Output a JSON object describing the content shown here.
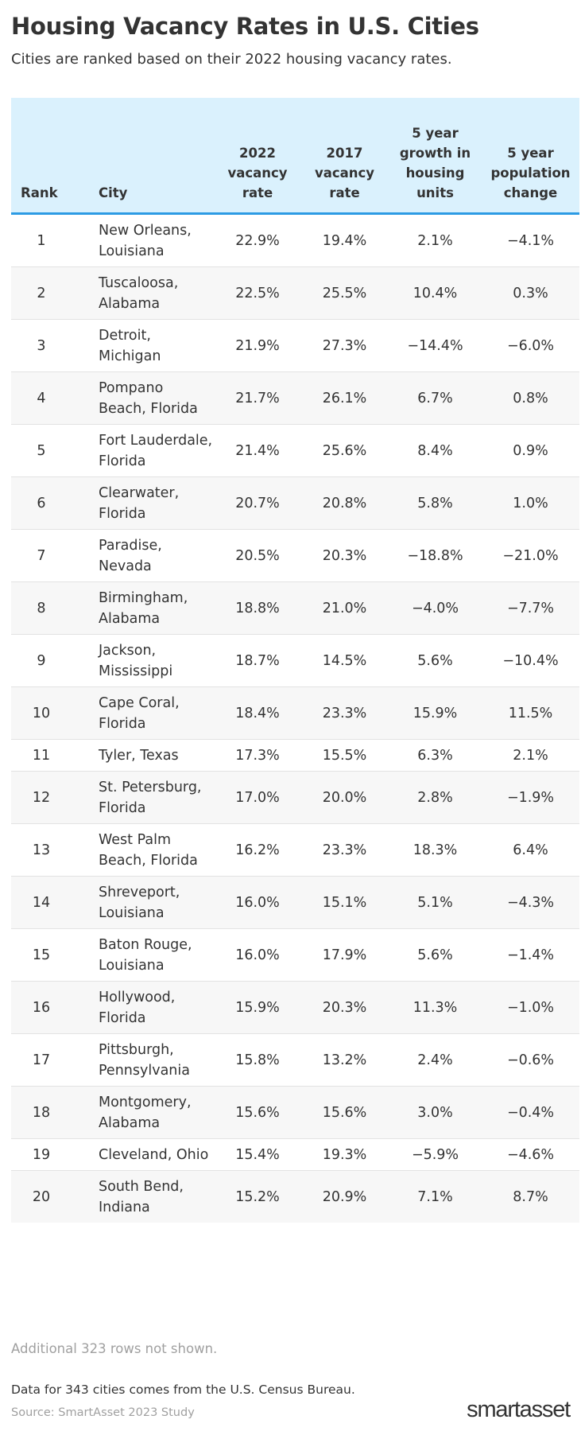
{
  "chart_data": {
    "type": "table",
    "title": "Housing Vacancy Rates in U.S. Cities",
    "subtitle": "Cities are ranked based on their 2022 housing vacancy rates.",
    "columns": [
      "Rank",
      "City",
      "2022 vacancy rate",
      "2017 vacancy rate",
      "5 year growth in housing units",
      "5 year population change"
    ],
    "rows": [
      [
        "1",
        "New Orleans, Louisiana",
        "22.9%",
        "19.4%",
        "2.1%",
        "−4.1%"
      ],
      [
        "2",
        "Tuscaloosa, Alabama",
        "22.5%",
        "25.5%",
        "10.4%",
        "0.3%"
      ],
      [
        "3",
        "Detroit, Michigan",
        "21.9%",
        "27.3%",
        "−14.4%",
        "−6.0%"
      ],
      [
        "4",
        "Pompano Beach, Florida",
        "21.7%",
        "26.1%",
        "6.7%",
        "0.8%"
      ],
      [
        "5",
        "Fort Lauderdale, Florida",
        "21.4%",
        "25.6%",
        "8.4%",
        "0.9%"
      ],
      [
        "6",
        "Clearwater, Florida",
        "20.7%",
        "20.8%",
        "5.8%",
        "1.0%"
      ],
      [
        "7",
        "Paradise, Nevada",
        "20.5%",
        "20.3%",
        "−18.8%",
        "−21.0%"
      ],
      [
        "8",
        "Birmingham, Alabama",
        "18.8%",
        "21.0%",
        "−4.0%",
        "−7.7%"
      ],
      [
        "9",
        "Jackson, Mississippi",
        "18.7%",
        "14.5%",
        "5.6%",
        "−10.4%"
      ],
      [
        "10",
        "Cape Coral, Florida",
        "18.4%",
        "23.3%",
        "15.9%",
        "11.5%"
      ],
      [
        "11",
        "Tyler, Texas",
        "17.3%",
        "15.5%",
        "6.3%",
        "2.1%"
      ],
      [
        "12",
        "St. Petersburg, Florida",
        "17.0%",
        "20.0%",
        "2.8%",
        "−1.9%"
      ],
      [
        "13",
        "West Palm Beach, Florida",
        "16.2%",
        "23.3%",
        "18.3%",
        "6.4%"
      ],
      [
        "14",
        "Shreveport, Louisiana",
        "16.0%",
        "15.1%",
        "5.1%",
        "−4.3%"
      ],
      [
        "15",
        "Baton Rouge, Louisiana",
        "16.0%",
        "17.9%",
        "5.6%",
        "−1.4%"
      ],
      [
        "16",
        "Hollywood, Florida",
        "15.9%",
        "20.3%",
        "11.3%",
        "−1.0%"
      ],
      [
        "17",
        "Pittsburgh, Pennsylvania",
        "15.8%",
        "13.2%",
        "2.4%",
        "−0.6%"
      ],
      [
        "18",
        "Montgomery, Alabama",
        "15.6%",
        "15.6%",
        "3.0%",
        "−0.4%"
      ],
      [
        "19",
        "Cleveland, Ohio",
        "15.4%",
        "19.3%",
        "−5.9%",
        "−4.6%"
      ],
      [
        "20",
        "South Bend, Indiana",
        "15.2%",
        "20.9%",
        "7.1%",
        "8.7%"
      ]
    ]
  },
  "note": "Additional 323 rows not shown.",
  "footer": {
    "data_note": "Data for 343 cities comes from the U.S. Census Bureau.",
    "source": "Source: SmartAsset 2023 Study",
    "logo": "smartasset"
  },
  "colors": {
    "header_bg": "#daf1fd",
    "header_rule": "#2c9be4",
    "stripe": "#f7f7f7",
    "muted_text": "#a0a0a0"
  }
}
